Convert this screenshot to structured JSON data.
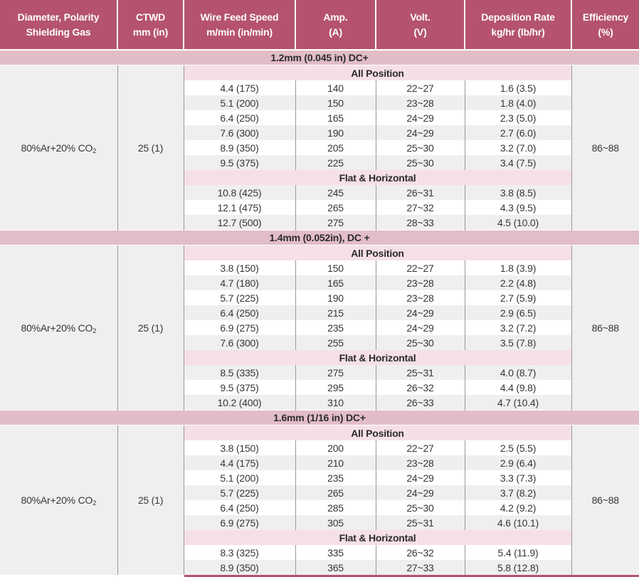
{
  "colors": {
    "header_bg": "#b5536e",
    "band_bg": "#e2bdc8",
    "subband_bg": "#f5e0e5",
    "row_gray": "#efefef",
    "row_white": "#ffffff",
    "grid_line": "#999999",
    "text_dark": "#363636",
    "header_text": "#ffffff",
    "bottom_border": "#b5536e"
  },
  "header": {
    "columns": [
      {
        "line1": "Diameter, Polarity",
        "line2": "Shielding Gas"
      },
      {
        "line1": "CTWD",
        "line2": "mm (in)"
      },
      {
        "line1": "Wire Feed Speed",
        "line2": "m/min (in/min)"
      },
      {
        "line1": "Amp.",
        "line2": "(A)"
      },
      {
        "line1": "Volt.",
        "line2": "(V)"
      },
      {
        "line1": "Deposition Rate",
        "line2": "kg/hr (lb/hr)"
      },
      {
        "line1": "Efficiency",
        "line2": "(%)"
      }
    ]
  },
  "sections": [
    {
      "title": "1.2mm (0.045 in) DC+",
      "gas": "80%Ar+20% CO",
      "gas_sub": "2",
      "ctwd": "25 (1)",
      "efficiency": "86~88",
      "groups": [
        {
          "label": "All Position",
          "first_shade": "white",
          "rows": [
            {
              "wire_feed_speed": "4.4 (175)",
              "amp": "140",
              "volt": "22~27",
              "deposition_rate": "1.6 (3.5)"
            },
            {
              "wire_feed_speed": "5.1 (200)",
              "amp": "150",
              "volt": "23~28",
              "deposition_rate": "1.8 (4.0)"
            },
            {
              "wire_feed_speed": "6.4 (250)",
              "amp": "165",
              "volt": "24~29",
              "deposition_rate": "2.3 (5.0)"
            },
            {
              "wire_feed_speed": "7.6 (300)",
              "amp": "190",
              "volt": "24~29",
              "deposition_rate": "2.7 (6.0)"
            },
            {
              "wire_feed_speed": "8.9 (350)",
              "amp": "205",
              "volt": "25~30",
              "deposition_rate": "3.2 (7.0)"
            },
            {
              "wire_feed_speed": "9.5 (375)",
              "amp": "225",
              "volt": "25~30",
              "deposition_rate": "3.4 (7.5)"
            }
          ]
        },
        {
          "label": "Flat & Horizontal",
          "first_shade": "gray",
          "rows": [
            {
              "wire_feed_speed": "10.8 (425)",
              "amp": "245",
              "volt": "26~31",
              "deposition_rate": "3.8 (8.5)"
            },
            {
              "wire_feed_speed": "12.1 (475)",
              "amp": "265",
              "volt": "27~32",
              "deposition_rate": "4.3 (9.5)"
            },
            {
              "wire_feed_speed": "12.7 (500)",
              "amp": "275",
              "volt": "28~33",
              "deposition_rate": "4.5 (10.0)"
            }
          ]
        }
      ]
    },
    {
      "title": "1.4mm (0.052in), DC +",
      "gas": "80%Ar+20% CO",
      "gas_sub": "2",
      "ctwd": "25 (1)",
      "efficiency": "86~88",
      "groups": [
        {
          "label": "All Position",
          "first_shade": "white",
          "rows": [
            {
              "wire_feed_speed": "3.8 (150)",
              "amp": "150",
              "volt": "22~27",
              "deposition_rate": "1.8 (3.9)"
            },
            {
              "wire_feed_speed": "4.7 (180)",
              "amp": "165",
              "volt": "23~28",
              "deposition_rate": "2.2 (4.8)"
            },
            {
              "wire_feed_speed": "5.7 (225)",
              "amp": "190",
              "volt": "23~28",
              "deposition_rate": "2.7 (5.9)"
            },
            {
              "wire_feed_speed": "6.4 (250)",
              "amp": "215",
              "volt": "24~29",
              "deposition_rate": "2.9 (6.5)"
            },
            {
              "wire_feed_speed": "6.9 (275)",
              "amp": "235",
              "volt": "24~29",
              "deposition_rate": "3.2 (7.2)"
            },
            {
              "wire_feed_speed": "7.6 (300)",
              "amp": "255",
              "volt": "25~30",
              "deposition_rate": "3.5 (7.8)"
            }
          ]
        },
        {
          "label": "Flat & Horizontal",
          "first_shade": "gray",
          "rows": [
            {
              "wire_feed_speed": "8.5 (335)",
              "amp": "275",
              "volt": "25~31",
              "deposition_rate": "4.0 (8.7)"
            },
            {
              "wire_feed_speed": "9.5 (375)",
              "amp": "295",
              "volt": "26~32",
              "deposition_rate": "4.4 (9.8)"
            },
            {
              "wire_feed_speed": "10.2 (400)",
              "amp": "310",
              "volt": "26~33",
              "deposition_rate": "4.7 (10.4)"
            }
          ]
        }
      ]
    },
    {
      "title": "1.6mm (1/16 in) DC+",
      "gas": "80%Ar+20% CO",
      "gas_sub": "2",
      "ctwd": "25 (1)",
      "efficiency": "86~88",
      "groups": [
        {
          "label": "All Position",
          "first_shade": "white",
          "rows": [
            {
              "wire_feed_speed": "3.8 (150)",
              "amp": "200",
              "volt": "22~27",
              "deposition_rate": "2.5 (5.5)"
            },
            {
              "wire_feed_speed": "4.4 (175)",
              "amp": "210",
              "volt": "23~28",
              "deposition_rate": "2.9 (6.4)"
            },
            {
              "wire_feed_speed": "5.1 (200)",
              "amp": "235",
              "volt": "24~29",
              "deposition_rate": "3.3 (7.3)"
            },
            {
              "wire_feed_speed": "5.7 (225)",
              "amp": "265",
              "volt": "24~29",
              "deposition_rate": "3.7 (8.2)"
            },
            {
              "wire_feed_speed": "6.4 (250)",
              "amp": "285",
              "volt": "25~30",
              "deposition_rate": "4.2 (9.2)"
            },
            {
              "wire_feed_speed": "6.9 (275)",
              "amp": "305",
              "volt": "25~31",
              "deposition_rate": "4.6 (10.1)"
            }
          ]
        },
        {
          "label": "Flat & Horizontal",
          "first_shade": "white",
          "rows": [
            {
              "wire_feed_speed": "8.3 (325)",
              "amp": "335",
              "volt": "26~32",
              "deposition_rate": "5.4 (11.9)"
            },
            {
              "wire_feed_speed": "8.9 (350)",
              "amp": "365",
              "volt": "27~33",
              "deposition_rate": "5.8 (12.8)"
            }
          ]
        }
      ]
    }
  ]
}
